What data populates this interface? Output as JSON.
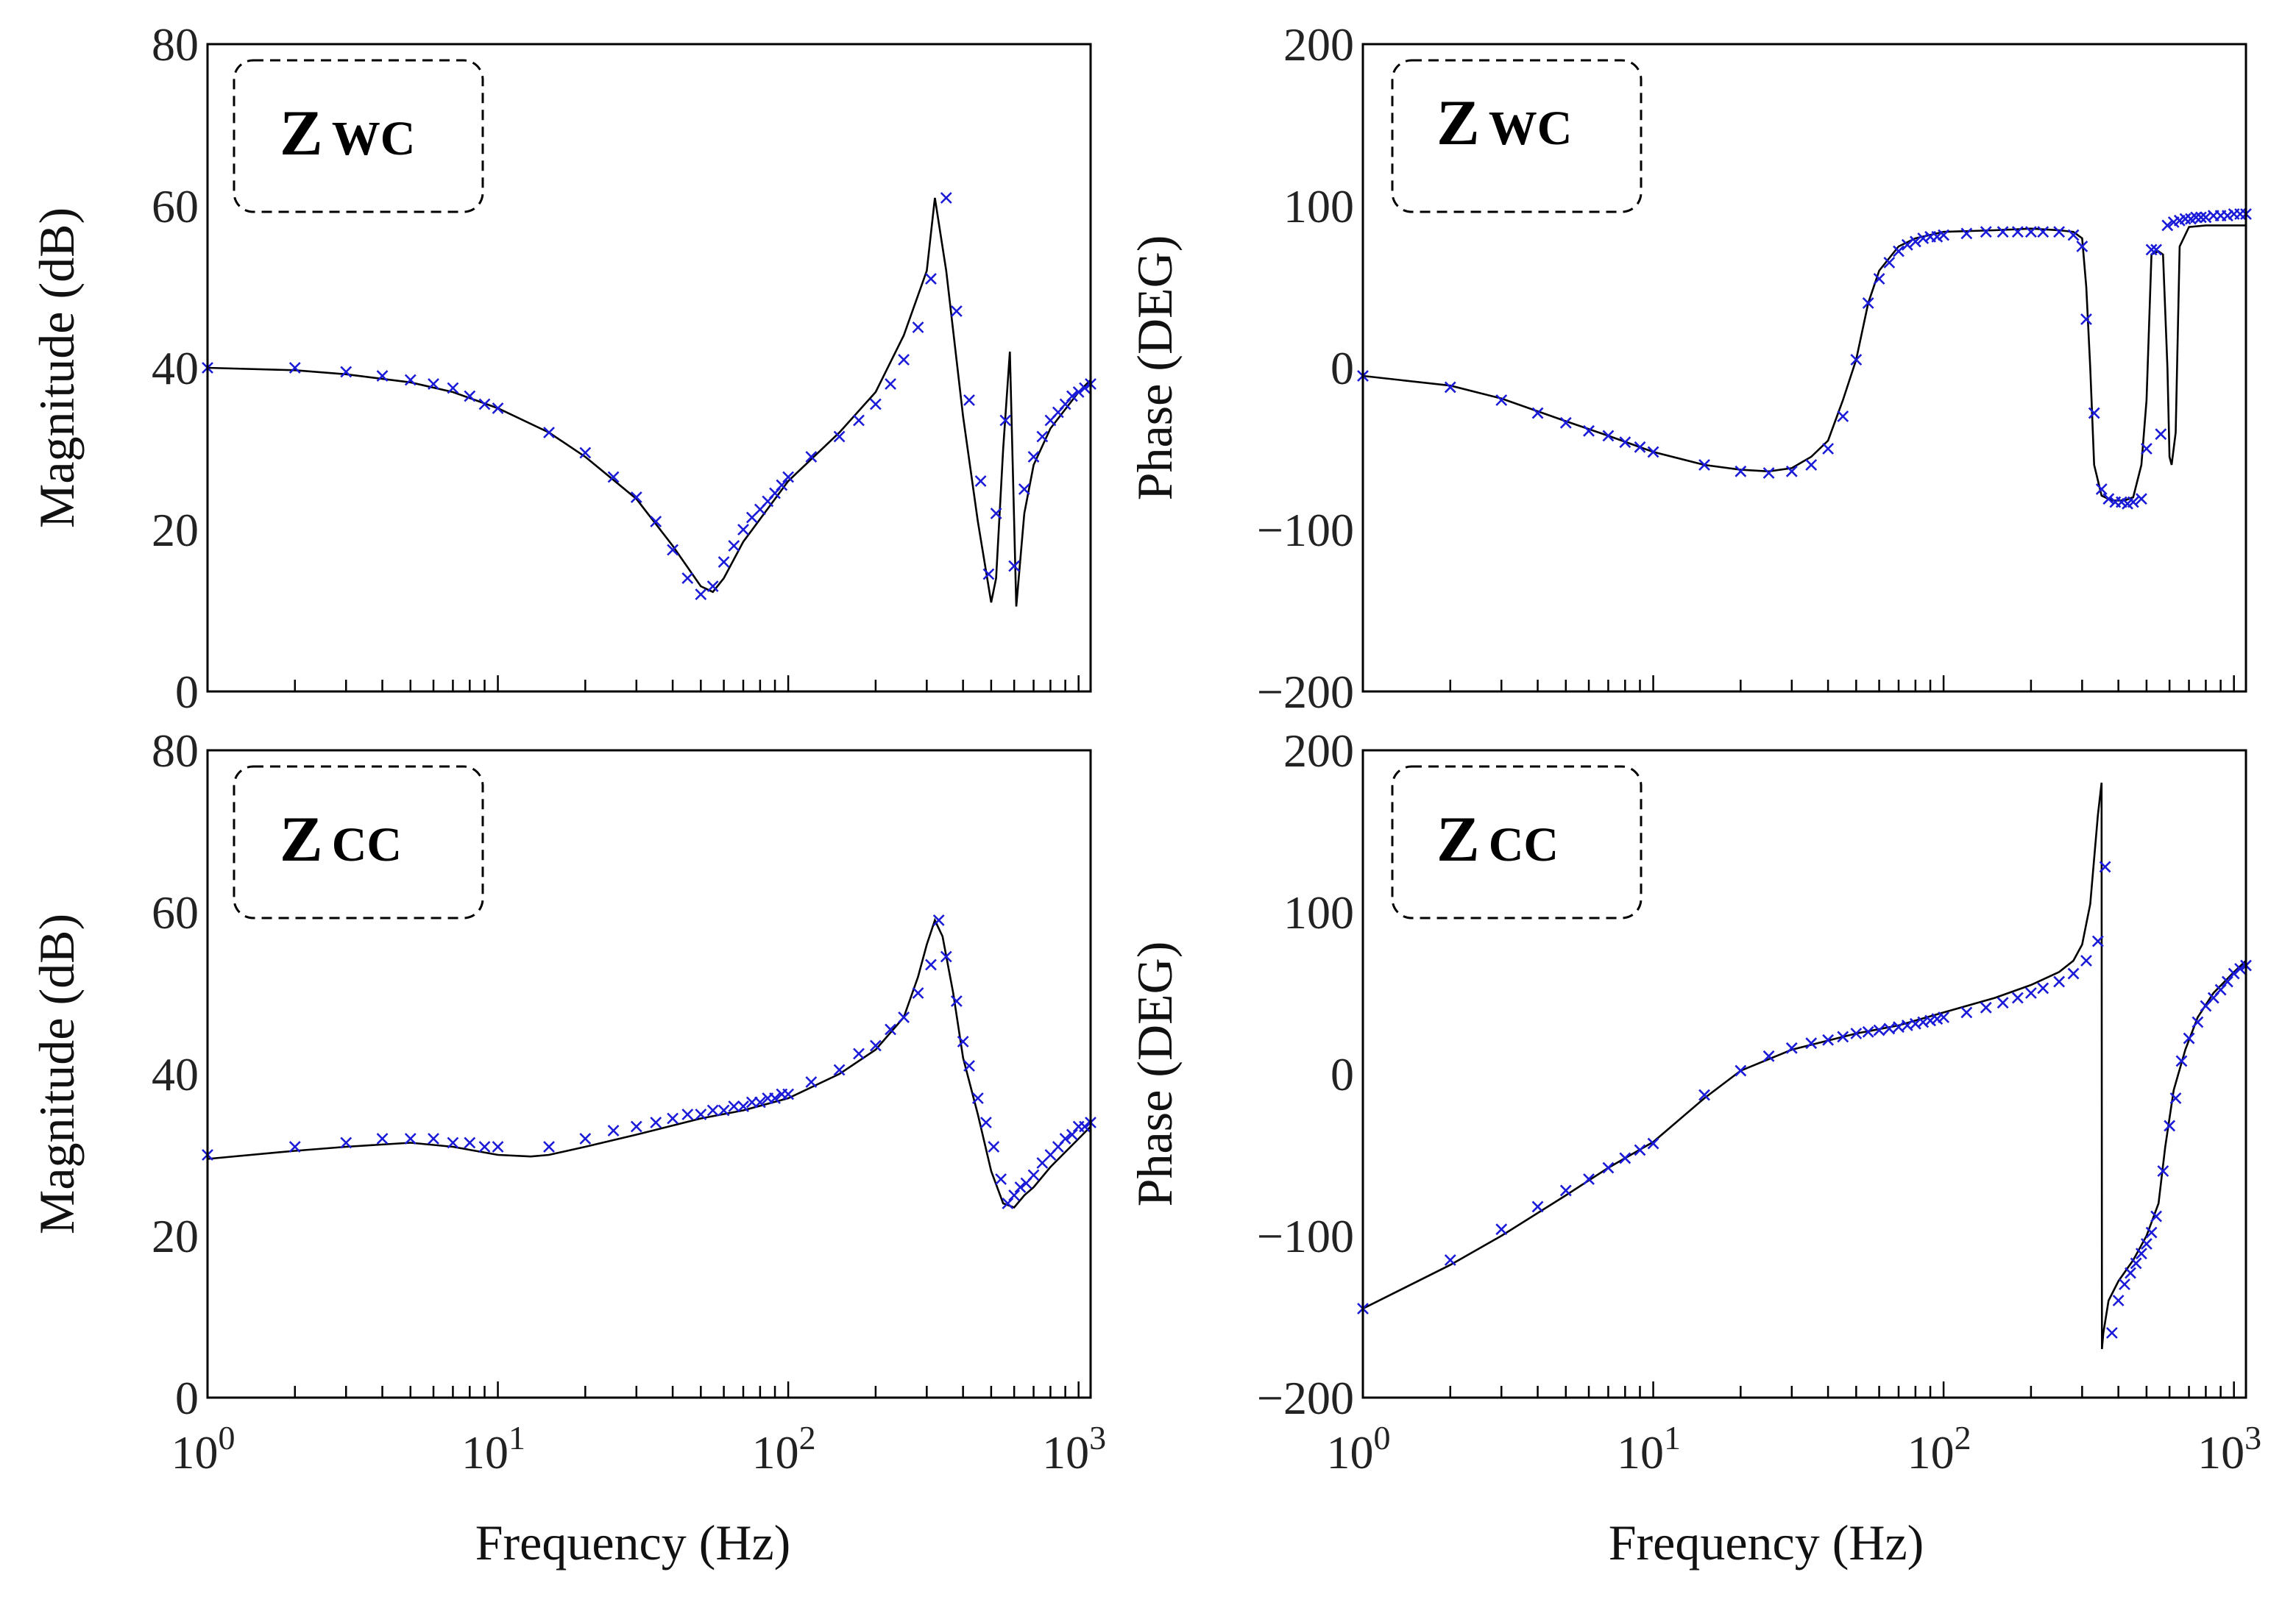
{
  "chart_data": [
    {
      "type": "line",
      "id": "mag_wc",
      "title": "",
      "legend": {
        "main": "Z",
        "sub": "WC"
      },
      "xlabel": "",
      "ylabel": "Magnitude (dB)",
      "xscale": "log",
      "xlim": [
        1,
        1100
      ],
      "ylim": [
        0,
        80
      ],
      "yticks": [
        0,
        20,
        40,
        60,
        80
      ],
      "xtick_labels": [],
      "series": [
        {
          "name": "model",
          "style": "black line",
          "x": [
            1,
            2,
            3,
            5,
            7,
            10,
            15,
            20,
            30,
            40,
            50,
            55,
            60,
            70,
            100,
            150,
            200,
            250,
            300,
            320,
            350,
            400,
            450,
            500,
            520,
            550,
            580,
            610,
            650,
            700,
            800,
            1000,
            1100
          ],
          "y": [
            40,
            39.7,
            39.2,
            38.2,
            37,
            35,
            32,
            29,
            23.8,
            18,
            13,
            12.3,
            14,
            18.5,
            26,
            32,
            37,
            44,
            52,
            61,
            52,
            34,
            21,
            11,
            14,
            30,
            42,
            10.5,
            22,
            28,
            32.5,
            37,
            38.5
          ]
        },
        {
          "name": "measured",
          "style": "blue x",
          "x": [
            1,
            2,
            3,
            4,
            5,
            6,
            7,
            8,
            9,
            10,
            15,
            20,
            25,
            30,
            35,
            40,
            45,
            50,
            55,
            60,
            65,
            70,
            75,
            80,
            85,
            90,
            95,
            100,
            120,
            150,
            175,
            200,
            225,
            250,
            280,
            310,
            350,
            380,
            420,
            460,
            490,
            520,
            560,
            600,
            650,
            700,
            750,
            800,
            850,
            900,
            950,
            1000,
            1050,
            1100
          ],
          "y": [
            40,
            40,
            39.5,
            39,
            38.5,
            38,
            37.5,
            36.5,
            35.5,
            35,
            32,
            29.5,
            26.5,
            24,
            21,
            17.5,
            14,
            12,
            13,
            16,
            18,
            20,
            21.5,
            22.5,
            23.5,
            24.5,
            25.5,
            26.5,
            29,
            31.5,
            33.5,
            35.5,
            38,
            41,
            45,
            51,
            61,
            47,
            36,
            26,
            14.5,
            22,
            33.5,
            15.5,
            25,
            29,
            31.5,
            33.5,
            34.5,
            35.5,
            36.5,
            37,
            37.5,
            38
          ]
        }
      ]
    },
    {
      "type": "line",
      "id": "phase_wc",
      "title": "",
      "legend": {
        "main": "Z",
        "sub": "WC"
      },
      "xlabel": "",
      "ylabel": "Phase (DEG)",
      "xscale": "log",
      "xlim": [
        1,
        1100
      ],
      "ylim": [
        -200,
        200
      ],
      "yticks": [
        -200,
        -100,
        0,
        100,
        200
      ],
      "ytick_labels": [
        "−200",
        "−100",
        "0",
        "100",
        "200"
      ],
      "xtick_labels": [],
      "series": [
        {
          "name": "model",
          "style": "black line",
          "x": [
            1,
            2,
            3,
            5,
            7,
            10,
            15,
            20,
            25,
            30,
            35,
            40,
            45,
            50,
            55,
            60,
            70,
            80,
            100,
            150,
            200,
            250,
            280,
            300,
            310,
            320,
            330,
            350,
            380,
            400,
            420,
            450,
            480,
            500,
            520,
            550,
            570,
            590,
            600,
            610,
            630,
            650,
            700,
            800,
            1000,
            1100
          ],
          "y": [
            -5,
            -11,
            -19,
            -33,
            -42,
            -52,
            -60,
            -63,
            -64,
            -62,
            -55,
            -45,
            -20,
            5,
            40,
            60,
            75,
            80,
            84,
            85,
            86,
            85,
            84,
            80,
            50,
            0,
            -60,
            -79,
            -82,
            -82,
            -82,
            -80,
            -60,
            -20,
            70,
            72,
            70,
            0,
            -55,
            -60,
            -40,
            75,
            87,
            88,
            88,
            88
          ]
        },
        {
          "name": "measured",
          "style": "blue x",
          "x": [
            1,
            2,
            3,
            4,
            5,
            6,
            7,
            8,
            9,
            10,
            15,
            20,
            25,
            30,
            35,
            40,
            45,
            50,
            55,
            60,
            65,
            70,
            75,
            80,
            85,
            90,
            95,
            100,
            120,
            140,
            160,
            180,
            200,
            220,
            250,
            280,
            300,
            310,
            330,
            350,
            370,
            390,
            410,
            430,
            450,
            480,
            500,
            520,
            540,
            560,
            590,
            620,
            650,
            680,
            710,
            740,
            770,
            800,
            850,
            900,
            950,
            1000,
            1050,
            1100
          ],
          "y": [
            -5,
            -12,
            -20,
            -28,
            -34,
            -39,
            -42,
            -46,
            -49,
            -52,
            -60,
            -64,
            -65,
            -64,
            -60,
            -50,
            -30,
            5,
            40,
            55,
            65,
            72,
            76,
            78,
            80,
            81,
            81,
            82,
            83,
            84,
            84,
            84,
            84,
            84,
            84,
            82,
            75,
            30,
            -28,
            -75,
            -81,
            -83,
            -83,
            -84,
            -83,
            -81,
            -50,
            73,
            73,
            -41,
            88,
            90,
            91,
            92,
            92,
            93,
            93,
            93,
            94,
            94,
            94,
            95,
            95,
            95
          ]
        }
      ]
    },
    {
      "type": "line",
      "id": "mag_cc",
      "title": "",
      "legend": {
        "main": "Z",
        "sub": "CC"
      },
      "xlabel": "Frequency (Hz)",
      "ylabel": "Magnitude (dB)",
      "xscale": "log",
      "xlim": [
        1,
        1100
      ],
      "ylim": [
        0,
        80
      ],
      "yticks": [
        0,
        20,
        40,
        60,
        80
      ],
      "xtick_labels": [
        "10^0",
        "10^1",
        "10^2",
        "10^3"
      ],
      "series": [
        {
          "name": "model",
          "style": "black line",
          "x": [
            1,
            2,
            3,
            5,
            7,
            10,
            13,
            15,
            20,
            30,
            50,
            70,
            100,
            150,
            200,
            250,
            280,
            300,
            320,
            340,
            370,
            400,
            450,
            500,
            550,
            600,
            650,
            700,
            800,
            1000,
            1100
          ],
          "y": [
            29.5,
            30.5,
            31,
            31.5,
            31,
            30,
            29.8,
            30,
            31,
            32.5,
            34.5,
            35.5,
            37,
            40,
            43,
            47,
            52,
            56,
            59,
            57,
            50,
            42,
            35,
            28,
            24,
            23.5,
            25,
            26,
            28.5,
            32,
            33.5
          ]
        },
        {
          "name": "measured",
          "style": "blue x",
          "x": [
            1,
            2,
            3,
            4,
            5,
            6,
            7,
            8,
            9,
            10,
            15,
            20,
            25,
            30,
            35,
            40,
            45,
            50,
            55,
            60,
            65,
            70,
            75,
            80,
            85,
            90,
            95,
            100,
            120,
            150,
            175,
            200,
            225,
            250,
            280,
            310,
            330,
            350,
            380,
            400,
            420,
            450,
            480,
            510,
            540,
            570,
            600,
            630,
            660,
            700,
            750,
            800,
            850,
            900,
            950,
            1000,
            1050,
            1100
          ],
          "y": [
            30,
            31,
            31.5,
            32,
            32,
            32,
            31.5,
            31.5,
            31,
            31,
            31,
            32,
            33,
            33.5,
            34,
            34.5,
            35,
            35,
            35.5,
            35.5,
            36,
            36,
            36.5,
            36.5,
            37,
            37,
            37.5,
            37.5,
            39,
            40.5,
            42.5,
            43.5,
            45.5,
            47,
            50,
            53.5,
            59,
            54.5,
            49,
            44,
            41,
            37,
            34,
            31,
            27,
            24,
            25,
            26,
            26.5,
            27.5,
            29,
            30,
            31,
            32,
            32.5,
            33.5,
            33.5,
            34
          ]
        }
      ]
    },
    {
      "type": "line",
      "id": "phase_cc",
      "title": "",
      "legend": {
        "main": "Z",
        "sub": "CC"
      },
      "xlabel": "Frequency (Hz)",
      "ylabel": "Phase (DEG)",
      "xscale": "log",
      "xlim": [
        1,
        1100
      ],
      "ylim": [
        -200,
        200
      ],
      "yticks": [
        -200,
        -100,
        0,
        100,
        200
      ],
      "ytick_labels": [
        "−200",
        "−100",
        "0",
        "100",
        "200"
      ],
      "xtick_labels": [
        "10^0",
        "10^1",
        "10^2",
        "10^3"
      ],
      "series": [
        {
          "name": "model",
          "style": "black line",
          "x": [
            1,
            2,
            3,
            5,
            7,
            10,
            15,
            20,
            30,
            50,
            70,
            100,
            150,
            200,
            250,
            280,
            300,
            320,
            340,
            350,
            351,
            355,
            370,
            400,
            450,
            500,
            550,
            580,
            620,
            680,
            750,
            850,
            1000,
            1100
          ],
          "y": [
            -145,
            -118,
            -100,
            -75,
            -58,
            -42,
            -15,
            2,
            15,
            25,
            30,
            38,
            47,
            55,
            63,
            70,
            80,
            105,
            160,
            180,
            -170,
            -160,
            -140,
            -128,
            -115,
            -100,
            -80,
            -45,
            -10,
            15,
            35,
            50,
            63,
            70
          ]
        },
        {
          "name": "measured",
          "style": "blue x",
          "x": [
            1,
            2,
            3,
            4,
            5,
            6,
            7,
            8,
            9,
            10,
            15,
            20,
            25,
            30,
            35,
            40,
            45,
            50,
            55,
            60,
            65,
            70,
            75,
            80,
            85,
            90,
            95,
            100,
            120,
            140,
            160,
            180,
            200,
            220,
            250,
            280,
            310,
            340,
            360,
            380,
            400,
            420,
            440,
            460,
            480,
            500,
            520,
            540,
            570,
            600,
            630,
            660,
            700,
            750,
            800,
            850,
            900,
            950,
            1000,
            1050,
            1100
          ],
          "y": [
            -145,
            -115,
            -96,
            -82,
            -72,
            -65,
            -58,
            -52,
            -47,
            -43,
            -13,
            2,
            11,
            16,
            19,
            21,
            23,
            25,
            26,
            27,
            28,
            29,
            30,
            31,
            32,
            33,
            34,
            35,
            38,
            41,
            44,
            47,
            50,
            53,
            57,
            62,
            70,
            82,
            128,
            -160,
            -140,
            -130,
            -123,
            -117,
            -111,
            -105,
            -98,
            -88,
            -60,
            -32,
            -15,
            8,
            22,
            32,
            42,
            47,
            52,
            57,
            62,
            65,
            67
          ]
        }
      ]
    }
  ]
}
